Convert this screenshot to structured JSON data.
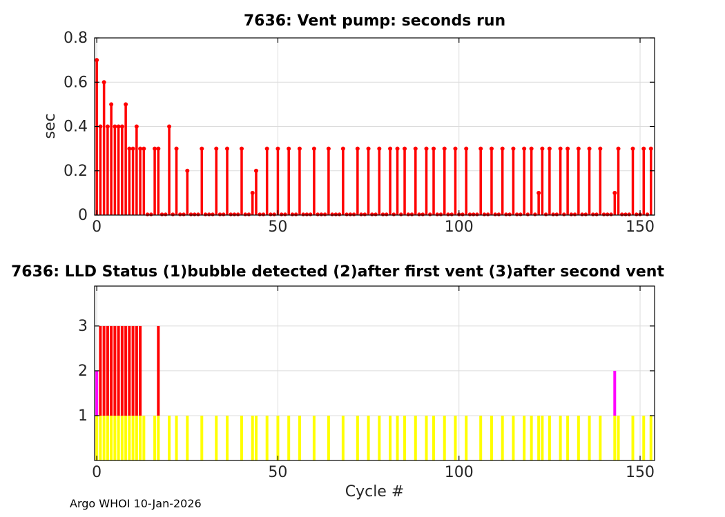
{
  "figure": {
    "background": "#ffffff",
    "footer": "Argo WHOI 10-Jan-2026"
  },
  "chart_data": [
    {
      "type": "stem",
      "title": "7636: Vent pump: seconds run",
      "xlabel": "",
      "ylabel": "sec",
      "xlim": [
        -0.6,
        154
      ],
      "ylim": [
        0,
        0.8
      ],
      "xticks": [
        0,
        50,
        100,
        150
      ],
      "yticks": [
        0,
        0.2,
        0.4,
        0.6,
        0.8
      ],
      "grid": true,
      "color": "#ff0000",
      "x_start": 0,
      "values": [
        0.7,
        0.4,
        0.6,
        0.4,
        0.5,
        0.4,
        0.4,
        0.4,
        0.5,
        0.3,
        0.3,
        0.4,
        0.3,
        0.3,
        0,
        0,
        0.3,
        0.3,
        0,
        0,
        0.4,
        0,
        0.3,
        0,
        0,
        0.2,
        0,
        0,
        0,
        0.3,
        0,
        0,
        0,
        0.3,
        0,
        0,
        0.3,
        0,
        0,
        0,
        0.3,
        0,
        0,
        0.1,
        0.2,
        0,
        0,
        0.3,
        0,
        0,
        0.3,
        0,
        0,
        0.3,
        0,
        0,
        0.3,
        0,
        0,
        0,
        0.3,
        0,
        0,
        0,
        0.3,
        0,
        0,
        0,
        0.3,
        0,
        0,
        0,
        0.3,
        0,
        0,
        0.3,
        0,
        0,
        0.3,
        0,
        0,
        0.3,
        0,
        0.3,
        0,
        0.3,
        0,
        0,
        0.3,
        0,
        0,
        0.3,
        0,
        0.3,
        0,
        0,
        0.3,
        0,
        0,
        0.3,
        0,
        0,
        0.3,
        0,
        0,
        0,
        0.3,
        0,
        0,
        0.3,
        0,
        0,
        0.3,
        0,
        0,
        0.3,
        0,
        0,
        0.3,
        0,
        0.3,
        0,
        0.1,
        0.3,
        0,
        0.3,
        0,
        0,
        0.3,
        0,
        0.3,
        0,
        0,
        0.3,
        0,
        0,
        0.3,
        0,
        0,
        0.3,
        0,
        0,
        0,
        0.1,
        0.3,
        0,
        0,
        0,
        0.3,
        0,
        0,
        0.3,
        0,
        0.3
      ]
    },
    {
      "type": "bar",
      "title": "7636: LLD Status   (1)bubble detected   (2)after first vent  (3)after second vent",
      "xlabel": "Cycle #",
      "ylabel": "",
      "xlim": [
        -0.6,
        154
      ],
      "ylim": [
        0,
        3.89
      ],
      "xticks": [
        0,
        50,
        100,
        150
      ],
      "yticks": [
        1,
        2,
        3
      ],
      "grid": true,
      "series": [
        {
          "name": "status-1-bubble-detected",
          "color": "#ffff00",
          "base": 0,
          "value": 1,
          "cycles": [
            0,
            1,
            2,
            3,
            4,
            5,
            6,
            7,
            8,
            9,
            10,
            11,
            12,
            13,
            16,
            17,
            20,
            22,
            25,
            29,
            33,
            36,
            40,
            43,
            44,
            47,
            50,
            53,
            56,
            60,
            64,
            68,
            72,
            75,
            78,
            81,
            83,
            85,
            88,
            91,
            93,
            96,
            99,
            102,
            106,
            109,
            112,
            115,
            118,
            120,
            122,
            123,
            125,
            128,
            130,
            133,
            136,
            139,
            143,
            144,
            148,
            151,
            153
          ]
        },
        {
          "name": "status-2-after-first-vent",
          "color": "#ff00ff",
          "base": 1,
          "value": 2,
          "cycles": [
            0,
            143
          ]
        },
        {
          "name": "status-3-after-second-vent",
          "color": "#ff0000",
          "base": 1,
          "value": 3,
          "cycles": [
            1,
            2,
            3,
            4,
            5,
            6,
            7,
            8,
            9,
            10,
            11,
            12,
            17
          ]
        }
      ]
    }
  ]
}
